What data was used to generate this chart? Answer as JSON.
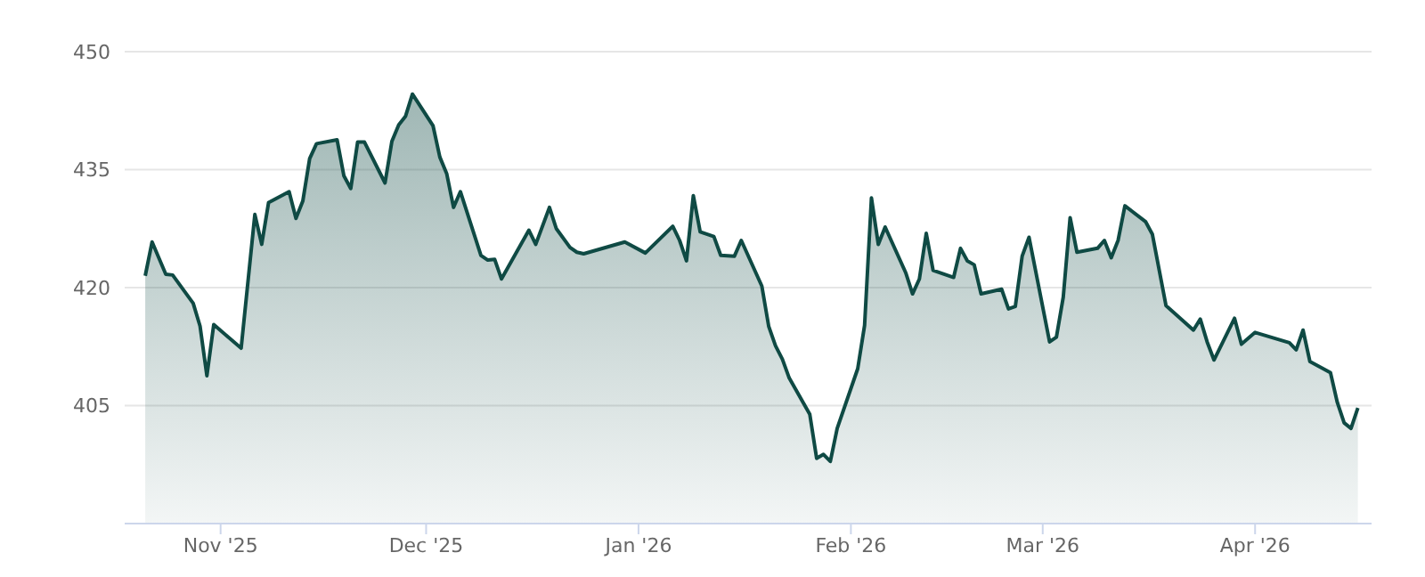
{
  "chart_data": {
    "type": "area",
    "color": "#0f4a44",
    "grid": "y",
    "legend": false,
    "marker": "none",
    "xlim": [
      "2025-10-18",
      "2026-04-18"
    ],
    "xticks": [
      {
        "value": "2025-11-01",
        "label": "Nov '25"
      },
      {
        "value": "2025-12-01",
        "label": "Dec '25"
      },
      {
        "value": "2026-01-01",
        "label": "Jan '26"
      },
      {
        "value": "2026-02-01",
        "label": "Feb '26"
      },
      {
        "value": "2026-03-01",
        "label": "Mar '26"
      },
      {
        "value": "2026-04-01",
        "label": "Apr '26"
      }
    ],
    "ylim": [
      390,
      450
    ],
    "yticks": [
      405,
      420,
      435,
      450
    ],
    "x": [
      "2025-10-21",
      "2025-10-22",
      "2025-10-24",
      "2025-10-25",
      "2025-10-28",
      "2025-10-29",
      "2025-10-30",
      "2025-10-31",
      "2025-11-04",
      "2025-11-06",
      "2025-11-07",
      "2025-11-08",
      "2025-11-11",
      "2025-11-12",
      "2025-11-13",
      "2025-11-14",
      "2025-11-15",
      "2025-11-18",
      "2025-11-19",
      "2025-11-20",
      "2025-11-21",
      "2025-11-22",
      "2025-11-25",
      "2025-11-26",
      "2025-11-27",
      "2025-11-28",
      "2025-11-29",
      "2025-12-02",
      "2025-12-03",
      "2025-12-04",
      "2025-12-05",
      "2025-12-06",
      "2025-12-09",
      "2025-12-10",
      "2025-12-11",
      "2025-12-12",
      "2025-12-16",
      "2025-12-17",
      "2025-12-19",
      "2025-12-20",
      "2025-12-22",
      "2025-12-23",
      "2025-12-24",
      "2025-12-30",
      "2026-01-02",
      "2026-01-06",
      "2026-01-07",
      "2026-01-08",
      "2026-01-09",
      "2026-01-10",
      "2026-01-12",
      "2026-01-13",
      "2026-01-15",
      "2026-01-16",
      "2026-01-19",
      "2026-01-20",
      "2026-01-21",
      "2026-01-22",
      "2026-01-23",
      "2026-01-26",
      "2026-01-27",
      "2026-01-28",
      "2026-01-29",
      "2026-01-30",
      "2026-02-02",
      "2026-02-03",
      "2026-02-04",
      "2026-02-05",
      "2026-02-06",
      "2026-02-09",
      "2026-02-10",
      "2026-02-11",
      "2026-02-12",
      "2026-02-13",
      "2026-02-16",
      "2026-02-17",
      "2026-02-18",
      "2026-02-19",
      "2026-02-20",
      "2026-02-23",
      "2026-02-24",
      "2026-02-25",
      "2026-02-26",
      "2026-02-27",
      "2026-03-02",
      "2026-03-03",
      "2026-03-04",
      "2026-03-05",
      "2026-03-06",
      "2026-03-09",
      "2026-03-10",
      "2026-03-11",
      "2026-03-12",
      "2026-03-13",
      "2026-03-16",
      "2026-03-17",
      "2026-03-19",
      "2026-03-23",
      "2026-03-24",
      "2026-03-25",
      "2026-03-26",
      "2026-03-29",
      "2026-03-30",
      "2026-04-01",
      "2026-04-06",
      "2026-04-07",
      "2026-04-08",
      "2026-04-09",
      "2026-04-12",
      "2026-04-13",
      "2026-04-14",
      "2026-04-15",
      "2026-04-16"
    ],
    "values": [
      421.5,
      425.8,
      421.7,
      421.6,
      418,
      415.1,
      408.8,
      415.3,
      412.3,
      429.3,
      425.5,
      430.8,
      432.2,
      428.8,
      431,
      436.4,
      438.3,
      438.8,
      434.2,
      432.6,
      438.5,
      438.5,
      433.3,
      438.6,
      440.7,
      441.8,
      444.6,
      440.6,
      436.6,
      434.5,
      430.2,
      432.2,
      424.1,
      423.5,
      423.6,
      421.1,
      427.3,
      425.5,
      430.2,
      427.5,
      425.1,
      424.5,
      424.3,
      425.8,
      424.4,
      427.8,
      426,
      423.4,
      431.7,
      427.1,
      426.5,
      424.1,
      424,
      426,
      420.2,
      415.1,
      412.6,
      410.9,
      408.5,
      403.9,
      398.3,
      398.8,
      397.9,
      402.1,
      409.7,
      415.2,
      431.4,
      425.5,
      427.7,
      421.9,
      419.2,
      421.1,
      426.9,
      422.2,
      421.3,
      425,
      423.4,
      422.9,
      419.2,
      419.8,
      417.3,
      417.6,
      424,
      426.4,
      413.1,
      413.7,
      418.8,
      428.9,
      424.5,
      425,
      426,
      423.8,
      426,
      430.4,
      428.4,
      426.8,
      417.7,
      414.6,
      416,
      413.1,
      410.8,
      416.1,
      412.8,
      414.3,
      413,
      412.1,
      414.6,
      410.6,
      409.2,
      405.4,
      402.8,
      402.1,
      404.7
    ]
  }
}
